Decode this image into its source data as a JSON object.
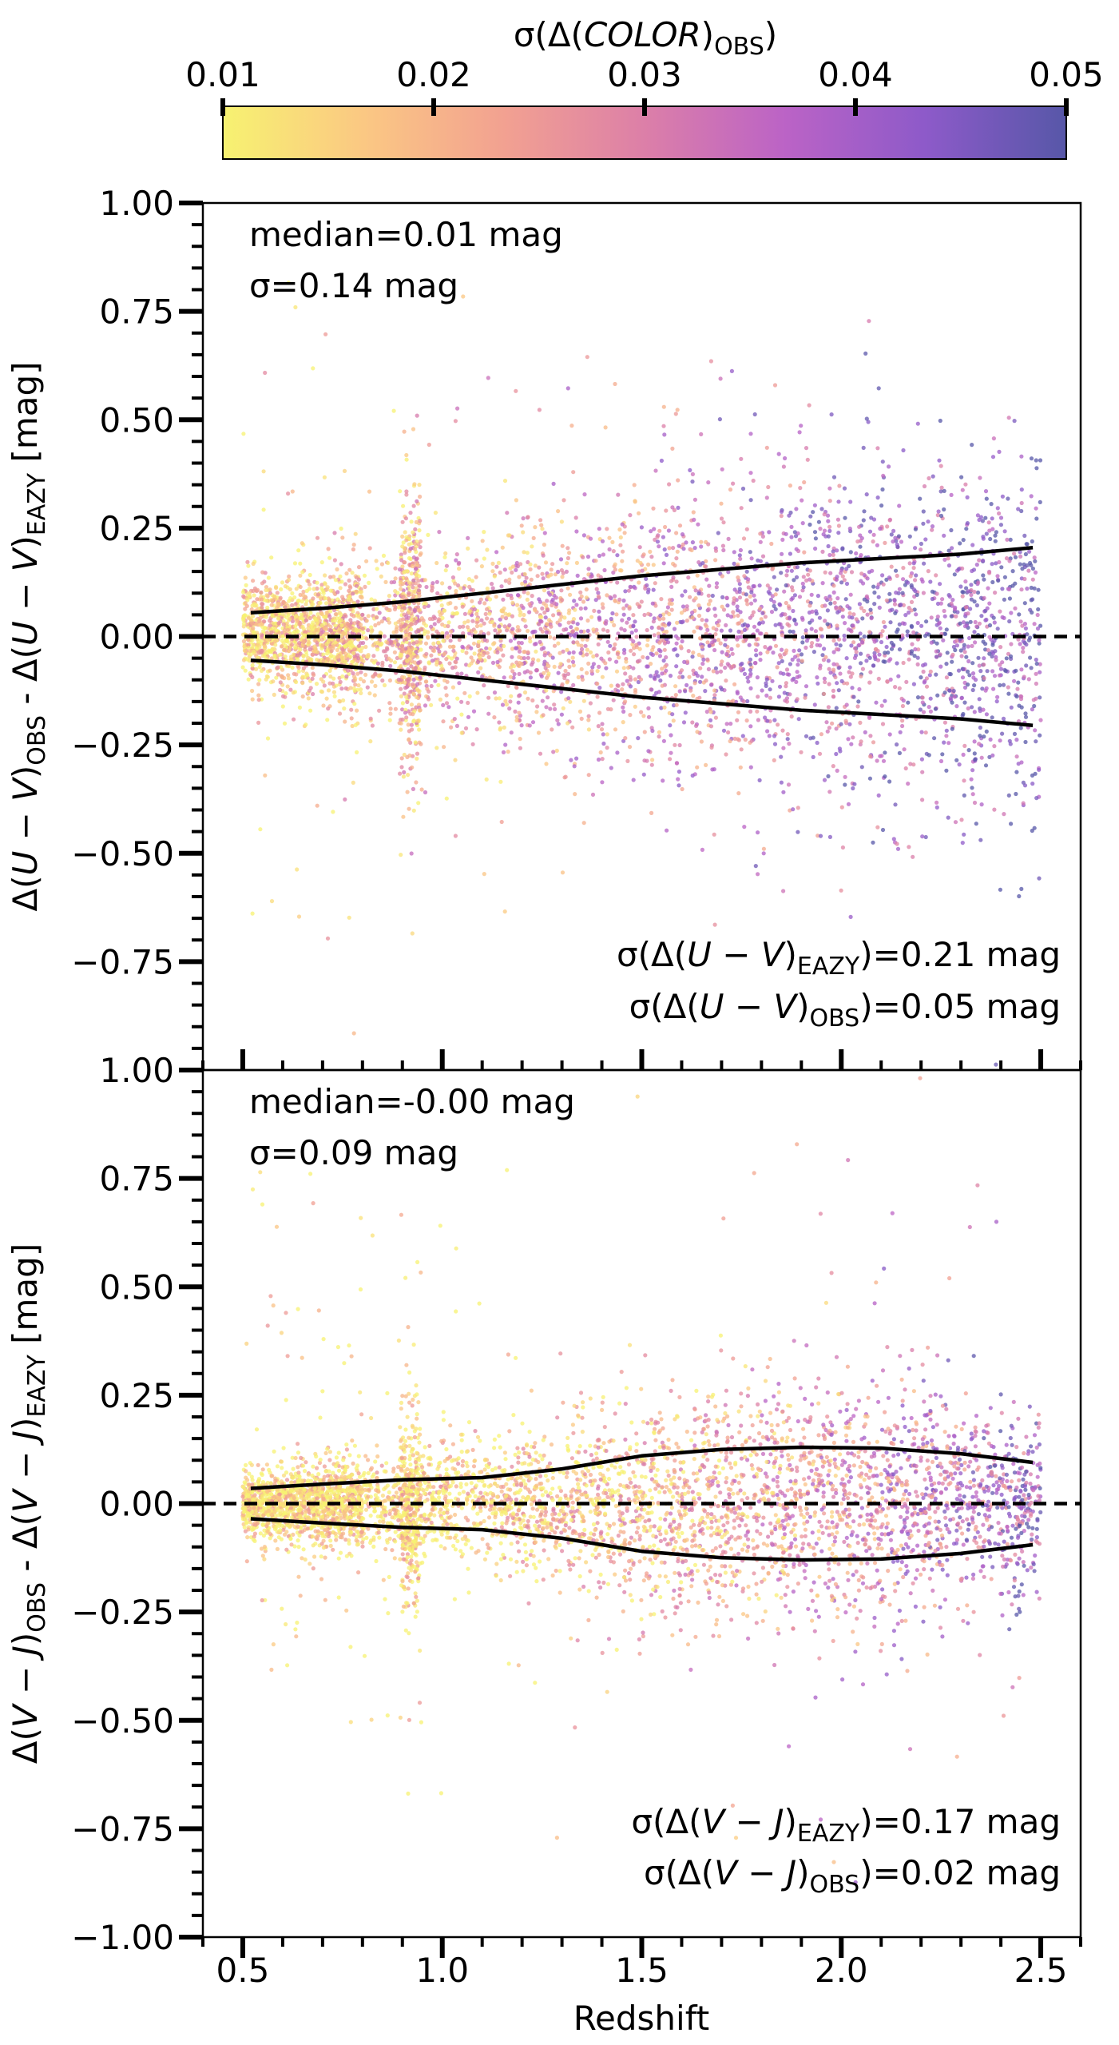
{
  "colorbar": {
    "label": "σ(Δ(COLOR)_OBS)",
    "label_main": "σ(Δ(",
    "label_italic": "COLOR",
    "label_close": ")",
    "label_sub": "OBS",
    "label_end": ")",
    "min": 0.01,
    "max": 0.05,
    "ticks": [
      "0.01",
      "0.02",
      "0.03",
      "0.04",
      "0.05"
    ],
    "colormap": "plasma_r",
    "stops": [
      "#f7f271",
      "#fbc883",
      "#f2a191",
      "#dc7fa8",
      "#bb63c6",
      "#8d5ac9",
      "#5757a8"
    ]
  },
  "x_axis": {
    "label": "Redshift",
    "range": [
      0.4,
      2.6
    ],
    "ticks": [
      "0.5",
      "1.0",
      "1.5",
      "2.0",
      "2.5"
    ]
  },
  "chart_data": [
    {
      "type": "scatter",
      "panel": "top",
      "title": "",
      "xlabel": "Redshift",
      "ylabel": "Δ(U − V)_OBS - Δ(U − V)_EAZY [mag]",
      "ylabel_parts": [
        "Δ(",
        "U − V",
        ")",
        "OBS",
        "  -  Δ(",
        "U − V",
        ")",
        "EAZY",
        " [mag]"
      ],
      "xlim": [
        0.4,
        2.6
      ],
      "ylim": [
        -1.0,
        1.0
      ],
      "y_ticks": [
        "−0.75",
        "−0.50",
        "−0.25",
        "0.00",
        "0.25",
        "0.50",
        "0.75",
        "1.00"
      ],
      "y_bottom_tick": "1.00",
      "annotations": {
        "median": "median=0.01 mag",
        "sigma": "σ=0.14 mag",
        "sigma_eazy": "σ(Δ(U − V)_EAZY)=0.21 mag",
        "sigma_eazy_parts": [
          "σ(Δ(",
          "U − V",
          ")",
          "EAZY",
          ")=0.21 mag"
        ],
        "sigma_obs": "σ(Δ(U − V)_OBS)=0.05 mag",
        "sigma_obs_parts": [
          "σ(Δ(",
          "U − V",
          ")",
          "OBS",
          ")=0.05 mag"
        ]
      },
      "reference_line": {
        "y": 0.0,
        "style": "dashed"
      },
      "envelope": {
        "x": [
          0.52,
          0.7,
          0.9,
          1.1,
          1.3,
          1.5,
          1.7,
          1.9,
          2.1,
          2.3,
          2.48
        ],
        "upper": [
          0.055,
          0.065,
          0.08,
          0.1,
          0.12,
          0.14,
          0.155,
          0.17,
          0.18,
          0.19,
          0.205
        ],
        "lower": [
          -0.055,
          -0.065,
          -0.08,
          -0.1,
          -0.12,
          -0.14,
          -0.155,
          -0.17,
          -0.18,
          -0.19,
          -0.205
        ]
      },
      "scatter_model": {
        "n_points": 5200,
        "z_range": [
          0.5,
          2.5
        ],
        "median_mag": 0.01,
        "sigma_mag": 0.14,
        "spike_redshift": 0.92,
        "note": "dense scatter of galaxies; color encodes σ(Δ(COLOR)_OBS); spread grows with redshift"
      }
    },
    {
      "type": "scatter",
      "panel": "bottom",
      "title": "",
      "xlabel": "Redshift",
      "ylabel": "Δ(V − J)_OBS - Δ(V − J)_EAZY [mag]",
      "ylabel_parts": [
        "Δ(",
        "V − J",
        ")",
        "OBS",
        "  -  Δ(",
        "V − J",
        ")",
        "EAZY",
        " [mag]"
      ],
      "xlim": [
        0.4,
        2.6
      ],
      "ylim": [
        -1.0,
        1.0
      ],
      "y_ticks": [
        "−1.00",
        "−0.75",
        "−0.50",
        "−0.25",
        "0.00",
        "0.25",
        "0.50",
        "0.75"
      ],
      "annotations": {
        "median": "median=-0.00 mag",
        "sigma": "σ=0.09 mag",
        "sigma_eazy": "σ(Δ(V − J)_EAZY)=0.17 mag",
        "sigma_eazy_parts": [
          "σ(Δ(",
          "V − J",
          ")",
          "EAZY",
          ")=0.17 mag"
        ],
        "sigma_obs": "σ(Δ(V − J)_OBS)=0.02 mag",
        "sigma_obs_parts": [
          "σ(Δ(",
          "V − J",
          ")",
          "OBS",
          ")=0.02 mag"
        ]
      },
      "reference_line": {
        "y": 0.0,
        "style": "dashed"
      },
      "envelope": {
        "x": [
          0.52,
          0.7,
          0.9,
          1.1,
          1.3,
          1.5,
          1.7,
          1.9,
          2.1,
          2.3,
          2.48
        ],
        "upper": [
          0.035,
          0.045,
          0.055,
          0.06,
          0.08,
          0.11,
          0.125,
          0.13,
          0.128,
          0.115,
          0.095
        ],
        "lower": [
          -0.035,
          -0.045,
          -0.055,
          -0.06,
          -0.08,
          -0.11,
          -0.125,
          -0.13,
          -0.128,
          -0.115,
          -0.095
        ]
      },
      "scatter_model": {
        "n_points": 5200,
        "z_range": [
          0.5,
          2.5
        ],
        "median_mag": 0.0,
        "sigma_mag": 0.09,
        "spike_redshift": 0.92,
        "note": "dense scatter of galaxies; low-z points mostly yellow (low σ)"
      }
    }
  ]
}
